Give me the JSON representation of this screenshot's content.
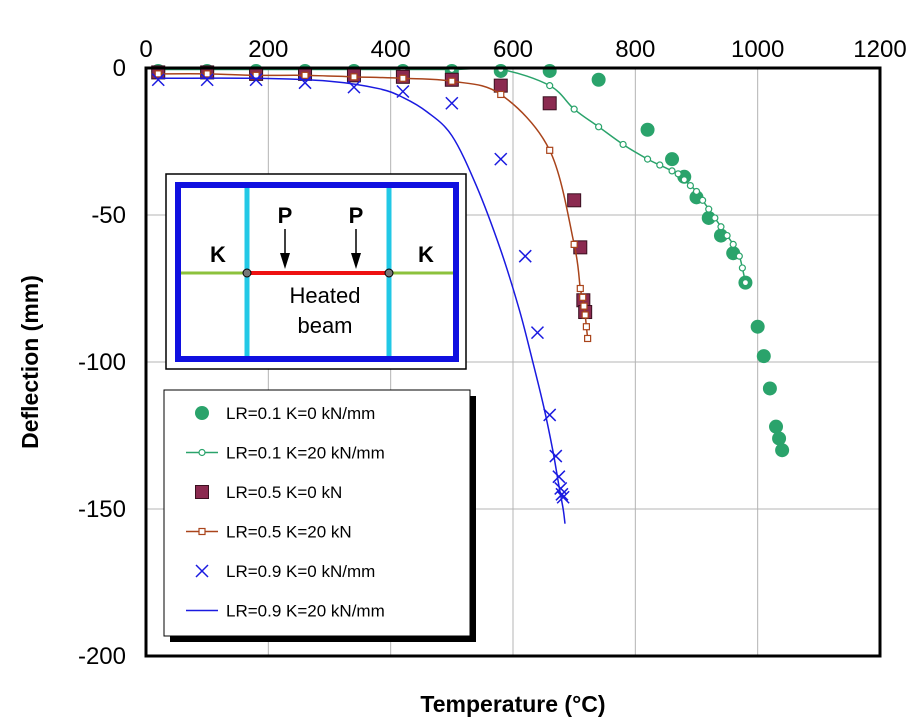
{
  "chart_data": {
    "type": "scatter",
    "xlabel": "Temperature (°C)",
    "ylabel": "Deflection (mm)",
    "xlim": [
      0,
      1200
    ],
    "ylim": [
      -200,
      0
    ],
    "x_ticks": [
      "0",
      "200",
      "400",
      "600",
      "800",
      "1000",
      "1200"
    ],
    "y_ticks": [
      "0",
      "-50",
      "-100",
      "-150",
      "-200"
    ],
    "x_axis_position": "top",
    "grid": true,
    "legend_position": "bottom-left",
    "series": [
      {
        "name": "LR=0.1 K=0 kN/mm",
        "style": "marker",
        "marker": "circle-filled",
        "color": "#2aa36b",
        "x": [
          20,
          100,
          180,
          260,
          340,
          420,
          500,
          580,
          660,
          740,
          820,
          860,
          880,
          900,
          920,
          940,
          960,
          980,
          1000,
          1010,
          1020,
          1030,
          1035,
          1040
        ],
        "y": [
          -1,
          -1,
          -1,
          -1,
          -1,
          -1,
          -1,
          -1,
          -1,
          -4,
          -21,
          -31,
          -37,
          -44,
          -51,
          -57,
          -63,
          -73,
          -88,
          -98,
          -109,
          -122,
          -126,
          -130
        ]
      },
      {
        "name": "LR=0.1 K=20 kN/mm",
        "style": "line-marker",
        "marker": "circle-open",
        "color": "#2aa36b",
        "x": [
          20,
          100,
          180,
          260,
          340,
          420,
          500,
          580,
          660,
          700,
          740,
          780,
          820,
          840,
          860,
          870,
          880,
          890,
          900,
          910,
          920,
          930,
          940,
          950,
          960,
          970,
          975,
          980
        ],
        "y": [
          -0.5,
          -0.5,
          -0.5,
          -0.5,
          -0.5,
          -0.5,
          -0.5,
          -0.5,
          -6,
          -14,
          -20,
          -26,
          -31,
          -33,
          -35,
          -36,
          -38,
          -40,
          -42,
          -45,
          -48,
          -51,
          -54,
          -57,
          -60,
          -64,
          -68,
          -73
        ]
      },
      {
        "name": "LR=0.5 K=0 kN",
        "style": "marker",
        "marker": "square-filled",
        "color": "#8b2a50",
        "x": [
          20,
          100,
          180,
          260,
          340,
          420,
          500,
          580,
          660,
          700,
          710,
          715,
          718
        ],
        "y": [
          -1.5,
          -1.5,
          -2,
          -2,
          -2.5,
          -3,
          -4,
          -6,
          -12,
          -45,
          -61,
          -79,
          -83
        ]
      },
      {
        "name": "LR=0.5 K=20 kN",
        "style": "line-marker",
        "marker": "square-open",
        "color": "#a9441b",
        "x": [
          20,
          100,
          180,
          260,
          340,
          420,
          500,
          580,
          660,
          700,
          710,
          714,
          716,
          718,
          720,
          722
        ],
        "y": [
          -2,
          -2,
          -2.5,
          -2.5,
          -3,
          -3.5,
          -4.5,
          -9,
          -28,
          -60,
          -75,
          -78,
          -81,
          -84,
          -88,
          -92
        ]
      },
      {
        "name": "LR=0.9 K=0 kN/mm",
        "style": "marker",
        "marker": "x",
        "color": "#1a1ae0",
        "x": [
          20,
          100,
          180,
          260,
          340,
          420,
          500,
          580,
          620,
          640,
          660,
          670,
          675,
          678,
          680,
          682
        ],
        "y": [
          -4,
          -4,
          -4,
          -5,
          -6.5,
          -8,
          -12,
          -31,
          -64,
          -90,
          -118,
          -132,
          -139,
          -143,
          -145,
          -146
        ]
      },
      {
        "name": "LR=0.9 K=20 kN/mm",
        "style": "line",
        "color": "#1a1ae0",
        "x": [
          20,
          180,
          300,
          380,
          420,
          460,
          500,
          540,
          580,
          610,
          630,
          650,
          665,
          675,
          682,
          685
        ],
        "y": [
          -3.5,
          -3.5,
          -4.5,
          -7,
          -10,
          -15,
          -23,
          -40,
          -62,
          -82,
          -98,
          -115,
          -130,
          -142,
          -150,
          -155
        ]
      }
    ]
  },
  "inset": {
    "left_spring": "K",
    "right_spring": "K",
    "load_left": "P",
    "load_right": "P",
    "beam_label_line1": "Heated",
    "beam_label_line2": "beam"
  }
}
